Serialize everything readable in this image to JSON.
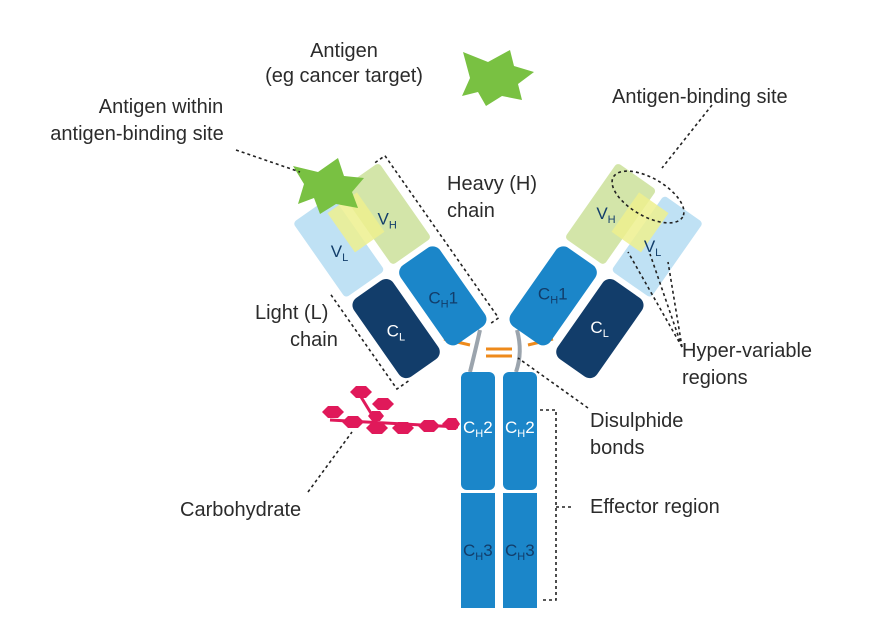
{
  "labels": {
    "antigen_line1": "Antigen",
    "antigen_line2": "(eg cancer target)",
    "antigen_within_line1": "Antigen within",
    "antigen_within_line2": "antigen-binding site",
    "heavy_line1": "Heavy (H)",
    "heavy_line2": "chain",
    "light_line1": "Light (L)",
    "light_line2": "chain",
    "binding_site": "Antigen-binding site",
    "hypervariable_line1": "Hyper-variable",
    "hypervariable_line2": "regions",
    "disulphide_line1": "Disulphide",
    "disulphide_line2": "bonds",
    "carbohydrate": "Carbohydrate",
    "effector": "Effector region"
  },
  "domains": {
    "c": "C",
    "v": "V",
    "h": "H",
    "l": "L",
    "ch1_num": "1",
    "ch2_num": "2",
    "ch3_num": "3"
  },
  "colors": {
    "heavy_constant": "#1b86c9",
    "light_constant": "#123d6a",
    "heavy_variable": "#d3e5a9",
    "light_variable": "#bfe1f4",
    "hypervariable": "#edf08e",
    "antigen": "#79c142",
    "disulphide": "#ee8a1b",
    "carbohydrate": "#e0195a",
    "hinge": "#9ba4ad"
  }
}
